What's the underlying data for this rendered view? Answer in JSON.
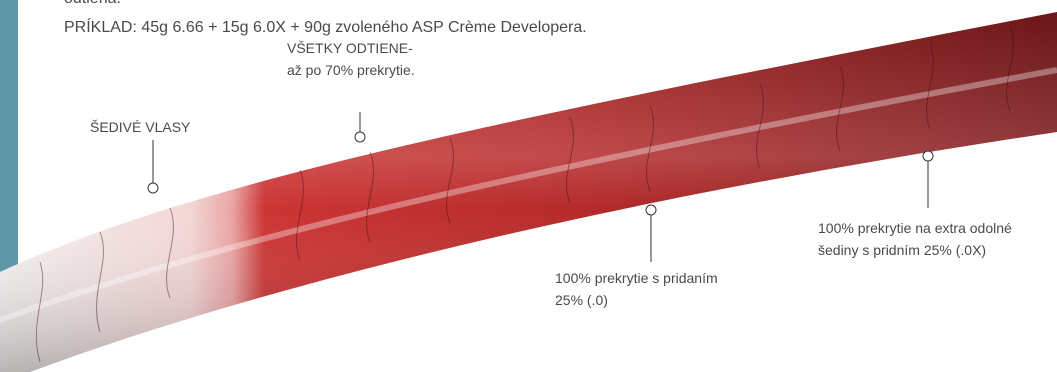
{
  "intro_cut": "odtieňa.",
  "example": "PRÍKLAD: 45g 6.66 + 15g 6.0X + 90g zvoleného ASP Crème Developera.",
  "callouts": [
    {
      "lines": [
        "ŠEDIVÉ VLASY"
      ]
    },
    {
      "lines": [
        "VŠETKY ODTIENE-",
        "až po 70% prekrytie."
      ]
    },
    {
      "lines": [
        "100% prekrytie s pridaním",
        "25% (.0)"
      ]
    },
    {
      "lines": [
        "100% prekrytie na extra odolné",
        "šediny s pridním 25% (.0X)"
      ]
    }
  ]
}
